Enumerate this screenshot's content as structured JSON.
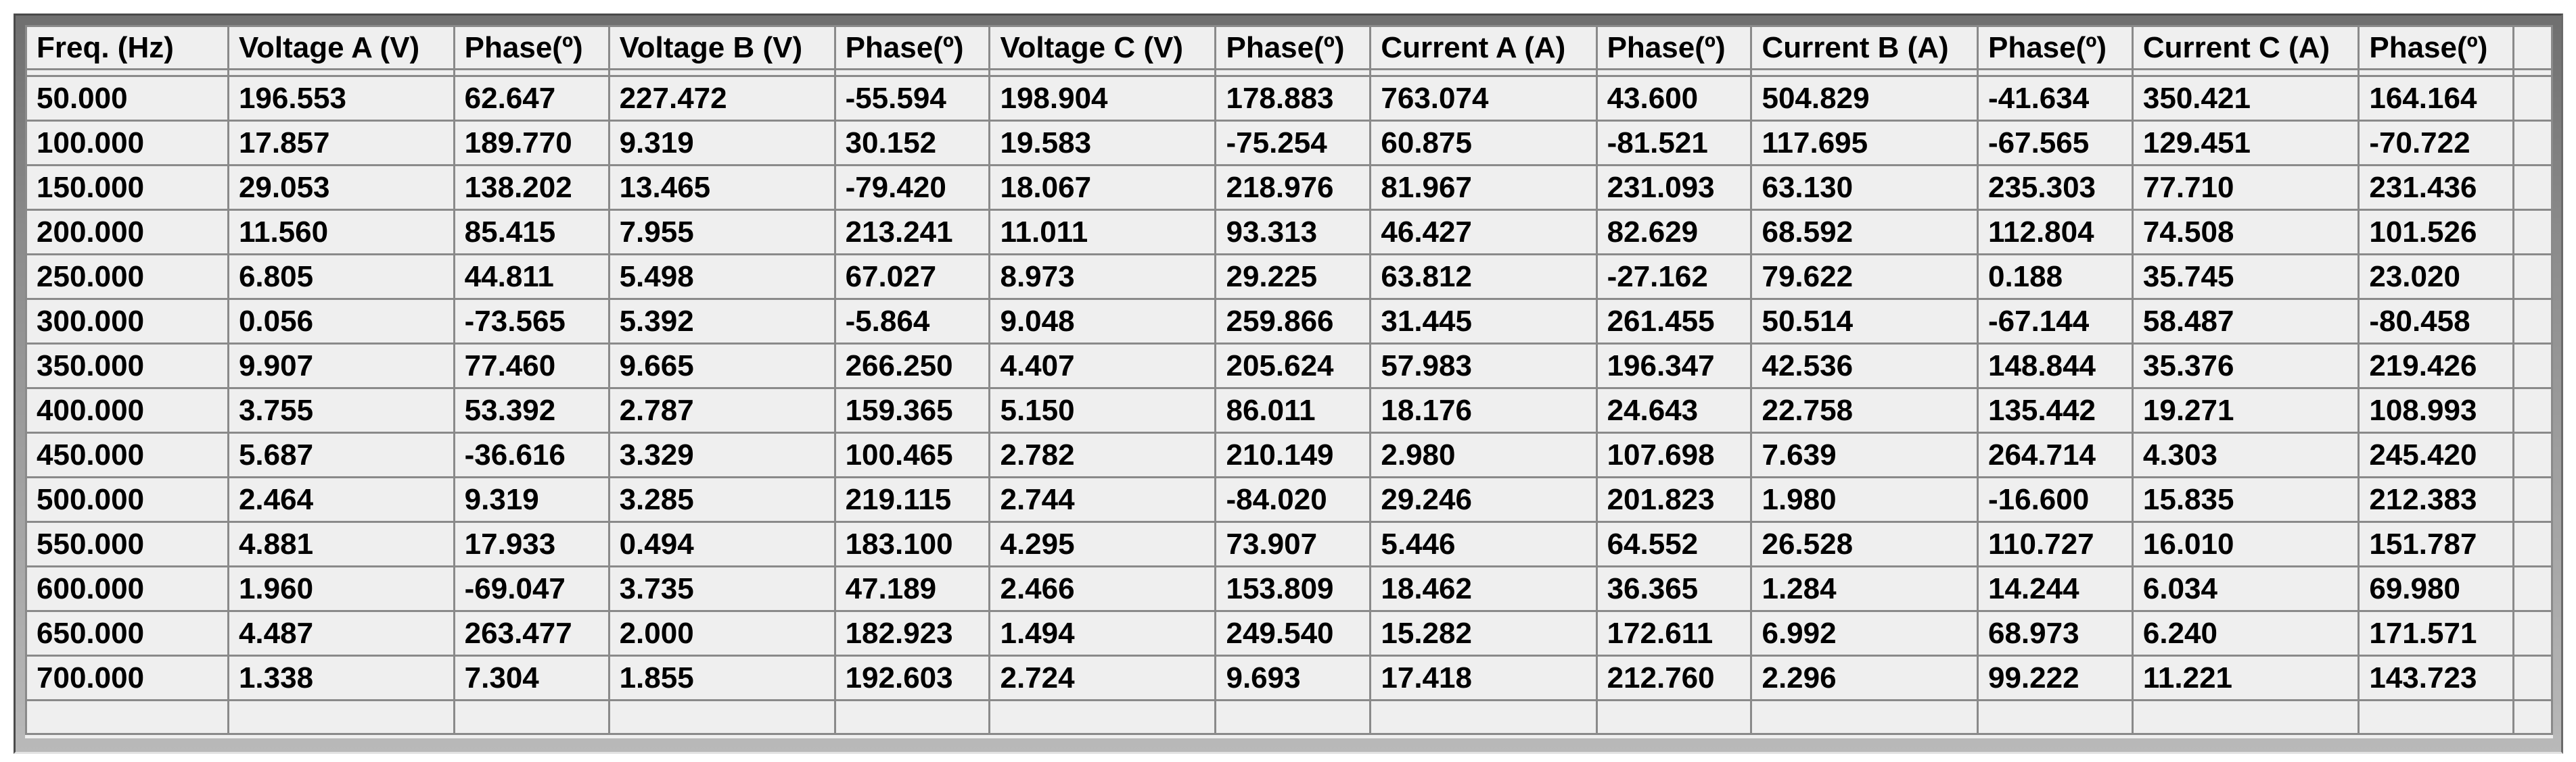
{
  "table": {
    "columns": [
      "Freq. (Hz)",
      "Voltage A (V)",
      "Phase(º)",
      "Voltage B (V)",
      "Phase(º)",
      "Voltage C (V)",
      "Phase(º)",
      "Current A (A)",
      "Phase(º)",
      "Current B (A)",
      "Phase(º)",
      "Current C (A)",
      "Phase(º)"
    ],
    "rows": [
      [
        "50.000",
        "196.553",
        "62.647",
        "227.472",
        "-55.594",
        "198.904",
        "178.883",
        "763.074",
        "43.600",
        "504.829",
        "-41.634",
        "350.421",
        "164.164"
      ],
      [
        "100.000",
        "17.857",
        "189.770",
        "9.319",
        "30.152",
        "19.583",
        "-75.254",
        "60.875",
        "-81.521",
        "117.695",
        "-67.565",
        "129.451",
        "-70.722"
      ],
      [
        "150.000",
        "29.053",
        "138.202",
        "13.465",
        "-79.420",
        "18.067",
        "218.976",
        "81.967",
        "231.093",
        "63.130",
        "235.303",
        "77.710",
        "231.436"
      ],
      [
        "200.000",
        "11.560",
        "85.415",
        "7.955",
        "213.241",
        "11.011",
        "93.313",
        "46.427",
        "82.629",
        "68.592",
        "112.804",
        "74.508",
        "101.526"
      ],
      [
        "250.000",
        "6.805",
        "44.811",
        "5.498",
        "67.027",
        "8.973",
        "29.225",
        "63.812",
        "-27.162",
        "79.622",
        "0.188",
        "35.745",
        "23.020"
      ],
      [
        "300.000",
        "0.056",
        "-73.565",
        "5.392",
        "-5.864",
        "9.048",
        "259.866",
        "31.445",
        "261.455",
        "50.514",
        "-67.144",
        "58.487",
        "-80.458"
      ],
      [
        "350.000",
        "9.907",
        "77.460",
        "9.665",
        "266.250",
        "4.407",
        "205.624",
        "57.983",
        "196.347",
        "42.536",
        "148.844",
        "35.376",
        "219.426"
      ],
      [
        "400.000",
        "3.755",
        "53.392",
        "2.787",
        "159.365",
        "5.150",
        "86.011",
        "18.176",
        "24.643",
        "22.758",
        "135.442",
        "19.271",
        "108.993"
      ],
      [
        "450.000",
        "5.687",
        "-36.616",
        "3.329",
        "100.465",
        "2.782",
        "210.149",
        "2.980",
        "107.698",
        "7.639",
        "264.714",
        "4.303",
        "245.420"
      ],
      [
        "500.000",
        "2.464",
        "9.319",
        "3.285",
        "219.115",
        "2.744",
        "-84.020",
        "29.246",
        "201.823",
        "1.980",
        "-16.600",
        "15.835",
        "212.383"
      ],
      [
        "550.000",
        "4.881",
        "17.933",
        "0.494",
        "183.100",
        "4.295",
        "73.907",
        "5.446",
        "64.552",
        "26.528",
        "110.727",
        "16.010",
        "151.787"
      ],
      [
        "600.000",
        "1.960",
        "-69.047",
        "3.735",
        "47.189",
        "2.466",
        "153.809",
        "18.462",
        "36.365",
        "1.284",
        "14.244",
        "6.034",
        "69.980"
      ],
      [
        "650.000",
        "4.487",
        "263.477",
        "2.000",
        "182.923",
        "1.494",
        "249.540",
        "15.282",
        "172.611",
        "6.992",
        "68.973",
        "6.240",
        "171.571"
      ],
      [
        "700.000",
        "1.338",
        "7.304",
        "1.855",
        "192.603",
        "2.724",
        "9.693",
        "17.418",
        "212.760",
        "2.296",
        "99.222",
        "11.221",
        "143.723"
      ]
    ]
  },
  "colors": {
    "cell_background": "#efefef",
    "grid_line": "#8a8a8a",
    "frame_top": "#6f6f6f",
    "frame_bottom": "#b9b9b9",
    "frame_dark": "#4a4a4a",
    "text": "#000000"
  }
}
